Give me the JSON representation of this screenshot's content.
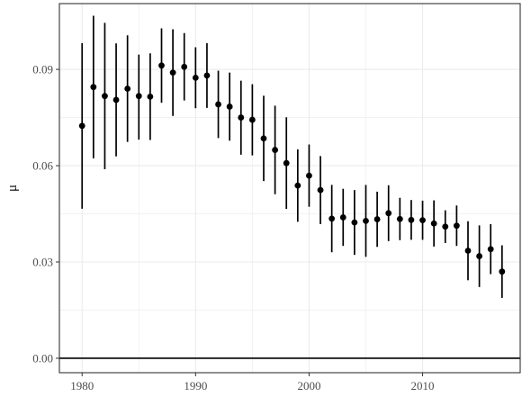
{
  "chart_data": {
    "type": "scatter",
    "title": "",
    "xlabel": "",
    "ylabel": "μ",
    "x_ticks": [
      1980,
      1990,
      2000,
      2010
    ],
    "x_tick_labels": [
      "1980",
      "1990",
      "2000",
      "2010"
    ],
    "y_ticks": [
      0.0,
      0.03,
      0.06,
      0.09
    ],
    "y_tick_labels": [
      "0.00",
      "0.03",
      "0.06",
      "0.09"
    ],
    "xlim": [
      1978,
      2018.6
    ],
    "ylim": [
      -0.0045,
      0.1105
    ],
    "grid": true,
    "reference_line": 0,
    "error_bars": true,
    "colors": {
      "points": "#000000",
      "error_bars": "#000000",
      "grid": "#ebebeb",
      "panel_border": "#333333",
      "reference_line": "#000000"
    },
    "series": [
      {
        "x": [
          1980,
          1981,
          1982,
          1983,
          1984,
          1985,
          1986,
          1987,
          1988,
          1989,
          1990,
          1991,
          1992,
          1993,
          1994,
          1995,
          1996,
          1997,
          1998,
          1999,
          2000,
          2001,
          2002,
          2003,
          2004,
          2005,
          2006,
          2007,
          2008,
          2009,
          2010,
          2011,
          2012,
          2013,
          2014,
          2015,
          2016,
          2017
        ],
        "y": [
          0.0724,
          0.0845,
          0.0817,
          0.0805,
          0.084,
          0.0817,
          0.0815,
          0.0912,
          0.089,
          0.0908,
          0.0874,
          0.0881,
          0.0791,
          0.0784,
          0.075,
          0.0743,
          0.0685,
          0.0649,
          0.0608,
          0.0538,
          0.0569,
          0.0524,
          0.0435,
          0.0439,
          0.0423,
          0.0428,
          0.0433,
          0.0452,
          0.0434,
          0.0431,
          0.043,
          0.042,
          0.041,
          0.0413,
          0.0335,
          0.0318,
          0.034,
          0.027
        ],
        "lower": [
          0.0466,
          0.0623,
          0.0589,
          0.0629,
          0.0674,
          0.0681,
          0.068,
          0.0796,
          0.0755,
          0.0803,
          0.0779,
          0.078,
          0.0686,
          0.0678,
          0.0634,
          0.0632,
          0.0552,
          0.0511,
          0.0465,
          0.0425,
          0.0472,
          0.0418,
          0.033,
          0.035,
          0.0322,
          0.0316,
          0.0347,
          0.0365,
          0.0368,
          0.0369,
          0.0369,
          0.0348,
          0.0359,
          0.035,
          0.0243,
          0.0222,
          0.0262,
          0.0188
        ],
        "upper": [
          0.0982,
          0.1067,
          0.1045,
          0.0981,
          0.1006,
          0.0946,
          0.095,
          0.1028,
          0.1025,
          0.1013,
          0.0969,
          0.0982,
          0.0896,
          0.089,
          0.0865,
          0.0854,
          0.0818,
          0.0787,
          0.0751,
          0.0651,
          0.0666,
          0.063,
          0.054,
          0.0528,
          0.0524,
          0.054,
          0.0519,
          0.0539,
          0.05,
          0.0493,
          0.0491,
          0.0492,
          0.0461,
          0.0476,
          0.0427,
          0.0414,
          0.0418,
          0.0352
        ]
      }
    ]
  }
}
